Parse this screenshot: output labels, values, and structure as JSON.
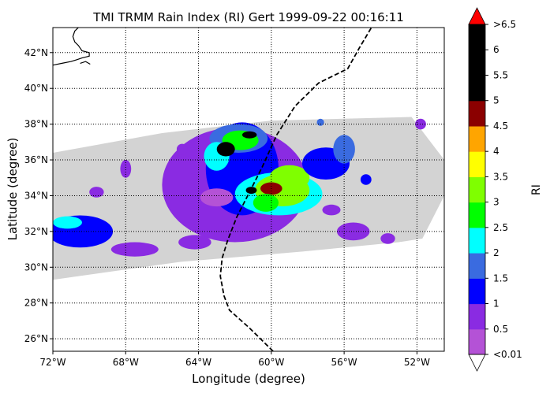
{
  "chart_data": {
    "type": "heatmap",
    "title": "TMI TRMM Rain Index (RI) Gert 1999-09-22 00:16:11",
    "xlabel": "Longitude (degree)",
    "ylabel": "Latitude (degree)",
    "xlim": [
      -72,
      -50.5
    ],
    "ylim": [
      25.3,
      43.4
    ],
    "grid": true,
    "grid_style": "dotted",
    "x_ticks": [
      {
        "value": -72,
        "label": "72°W"
      },
      {
        "value": -68,
        "label": "68°W"
      },
      {
        "value": -64,
        "label": "64°W"
      },
      {
        "value": -60,
        "label": "60°W"
      },
      {
        "value": -56,
        "label": "56°W"
      },
      {
        "value": -52,
        "label": "52°W"
      }
    ],
    "y_ticks": [
      {
        "value": 26,
        "label": "26°N"
      },
      {
        "value": 28,
        "label": "28°N"
      },
      {
        "value": 30,
        "label": "30°N"
      },
      {
        "value": 32,
        "label": "32°N"
      },
      {
        "value": 34,
        "label": "34°N"
      },
      {
        "value": 36,
        "label": "36°N"
      },
      {
        "value": 38,
        "label": "38°N"
      },
      {
        "value": 40,
        "label": "40°N"
      },
      {
        "value": 42,
        "label": "42°N"
      }
    ],
    "swath": {
      "color": "#d3d3d3",
      "outline": [
        [
          -72,
          29.3
        ],
        [
          -65,
          30.3
        ],
        [
          -58,
          30.9
        ],
        [
          -53,
          31.4
        ],
        [
          -51.7,
          31.6
        ],
        [
          -50.5,
          34.0
        ],
        [
          -50.5,
          36.0
        ],
        [
          -52.3,
          38.4
        ],
        [
          -60,
          38.2
        ],
        [
          -66,
          37.5
        ],
        [
          -72,
          36.4
        ]
      ]
    },
    "storm_track": {
      "style": "dashed",
      "color": "#000000",
      "points": [
        [
          -59.9,
          25.3
        ],
        [
          -61.2,
          26.6
        ],
        [
          -62.3,
          27.6
        ],
        [
          -62.6,
          28.4
        ],
        [
          -62.8,
          29.5
        ],
        [
          -62.7,
          30.5
        ],
        [
          -62.4,
          31.5
        ],
        [
          -61.9,
          32.8
        ],
        [
          -61.2,
          34.2
        ],
        [
          -60.5,
          35.6
        ],
        [
          -59.7,
          37.4
        ],
        [
          -58.7,
          39.0
        ],
        [
          -57.4,
          40.3
        ],
        [
          -55.8,
          41.1
        ],
        [
          -55.2,
          42.2
        ],
        [
          -54.5,
          43.4
        ]
      ]
    },
    "rain_cells": [
      {
        "lon": -62.0,
        "lat": 34.6,
        "rx": 4.0,
        "ry": 3.2,
        "level": 1
      },
      {
        "lon": -61.6,
        "lat": 35.5,
        "rx": 2.0,
        "ry": 2.6,
        "level": 2
      },
      {
        "lon": -61.8,
        "lat": 37.2,
        "rx": 1.6,
        "ry": 0.8,
        "level": 3
      },
      {
        "lon": -61.7,
        "lat": 37.1,
        "rx": 1.0,
        "ry": 0.55,
        "level": 5
      },
      {
        "lon": -63.0,
        "lat": 36.2,
        "rx": 0.7,
        "ry": 0.8,
        "level": 4
      },
      {
        "lon": -59.6,
        "lat": 34.1,
        "rx": 2.4,
        "ry": 1.2,
        "level": 4
      },
      {
        "lon": -59.4,
        "lat": 34.3,
        "rx": 1.5,
        "ry": 0.9,
        "level": 6
      },
      {
        "lon": -59.0,
        "lat": 35.0,
        "rx": 1.1,
        "ry": 0.7,
        "level": 6
      },
      {
        "lon": -60.0,
        "lat": 34.4,
        "rx": 0.6,
        "ry": 0.35,
        "level": 9
      },
      {
        "lon": -60.3,
        "lat": 33.6,
        "rx": 0.7,
        "ry": 0.5,
        "level": 5
      },
      {
        "lon": -63.0,
        "lat": 33.9,
        "rx": 0.9,
        "ry": 0.5,
        "level": 0
      },
      {
        "lon": -62.5,
        "lat": 36.6,
        "rx": 0.5,
        "ry": 0.4,
        "level": 10
      },
      {
        "lon": -61.2,
        "lat": 37.4,
        "rx": 0.4,
        "ry": 0.2,
        "level": 10
      },
      {
        "lon": -61.1,
        "lat": 34.3,
        "rx": 0.3,
        "ry": 0.2,
        "level": 10
      },
      {
        "lon": -57.0,
        "lat": 35.8,
        "rx": 1.3,
        "ry": 0.9,
        "level": 2
      },
      {
        "lon": -56.0,
        "lat": 36.6,
        "rx": 0.6,
        "ry": 0.8,
        "level": 3
      },
      {
        "lon": -70.5,
        "lat": 32.0,
        "rx": 1.8,
        "ry": 0.9,
        "level": 2
      },
      {
        "lon": -71.2,
        "lat": 32.5,
        "rx": 0.8,
        "ry": 0.35,
        "level": 4
      },
      {
        "lon": -67.5,
        "lat": 31.0,
        "rx": 1.3,
        "ry": 0.4,
        "level": 1
      },
      {
        "lon": -64.2,
        "lat": 31.4,
        "rx": 0.9,
        "ry": 0.4,
        "level": 1
      },
      {
        "lon": -55.5,
        "lat": 32.0,
        "rx": 0.9,
        "ry": 0.5,
        "level": 1
      },
      {
        "lon": -53.6,
        "lat": 31.6,
        "rx": 0.4,
        "ry": 0.3,
        "level": 1
      },
      {
        "lon": -51.8,
        "lat": 38.0,
        "rx": 0.3,
        "ry": 0.3,
        "level": 1
      },
      {
        "lon": -57.3,
        "lat": 38.1,
        "rx": 0.2,
        "ry": 0.2,
        "level": 3
      },
      {
        "lon": -64.9,
        "lat": 36.6,
        "rx": 0.3,
        "ry": 0.3,
        "level": 1
      },
      {
        "lon": -68.0,
        "lat": 35.5,
        "rx": 0.3,
        "ry": 0.5,
        "level": 1
      },
      {
        "lon": -69.6,
        "lat": 34.2,
        "rx": 0.4,
        "ry": 0.3,
        "level": 1
      },
      {
        "lon": -54.8,
        "lat": 34.9,
        "rx": 0.3,
        "ry": 0.3,
        "level": 2
      },
      {
        "lon": -56.7,
        "lat": 33.2,
        "rx": 0.5,
        "ry": 0.3,
        "level": 1
      }
    ],
    "coastline": {
      "color": "#000000",
      "points": [
        [
          -72,
          41.3
        ],
        [
          -71.5,
          41.4
        ],
        [
          -71,
          41.5
        ],
        [
          -70.7,
          41.6
        ],
        [
          -70.4,
          41.7
        ],
        [
          -70.0,
          41.8
        ],
        [
          -70.0,
          42.0
        ],
        [
          -70.4,
          42.1
        ],
        [
          -70.6,
          42.4
        ],
        [
          -70.8,
          42.6
        ],
        [
          -70.9,
          42.9
        ],
        [
          -70.8,
          43.2
        ],
        [
          -70.6,
          43.4
        ]
      ],
      "island_points": [
        [
          -70.5,
          41.4
        ],
        [
          -70.2,
          41.5
        ],
        [
          -69.95,
          41.35
        ]
      ]
    },
    "colorbar": {
      "label": "RI",
      "boundaries": [
        0,
        0.5,
        1,
        1.5,
        2,
        2.5,
        3,
        3.5,
        4,
        4.5,
        5,
        5.5,
        6,
        6.5
      ],
      "colors": [
        "#b452d6",
        "#8a2be2",
        "#0000ff",
        "#3a6be0",
        "#00ffff",
        "#00ff00",
        "#7fff00",
        "#ffff00",
        "#ffa500",
        "#8b0000",
        "#000000",
        "#000000",
        "#000000"
      ],
      "over_color": "#ff0000",
      "under_color": "#ffffff",
      "tick_labels": [
        "<0.01",
        "0.5",
        "1",
        "1.5",
        "2",
        "2.5",
        "3",
        "3.5",
        "4",
        "4.5",
        "5",
        "5.5",
        "6",
        ">6.5"
      ]
    }
  }
}
